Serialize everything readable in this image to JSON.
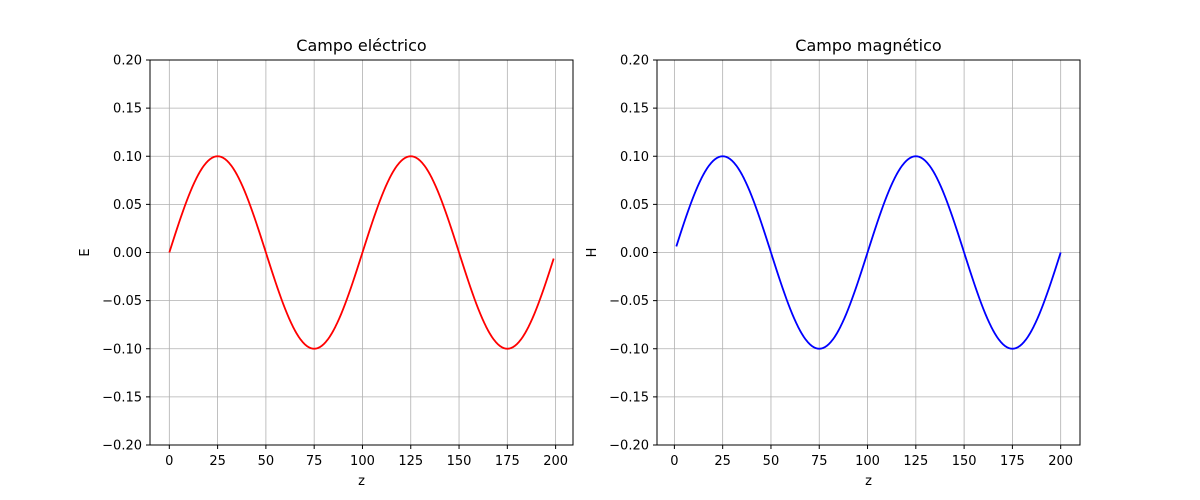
{
  "chart_data": [
    {
      "type": "line",
      "title": "Campo eléctrico",
      "xlabel": "z",
      "ylabel": "E",
      "xlim": [
        -10,
        209
      ],
      "ylim": [
        -0.2,
        0.2
      ],
      "xticks": [
        0,
        25,
        50,
        75,
        100,
        125,
        150,
        175,
        200
      ],
      "yticks": [
        -0.2,
        -0.15,
        -0.1,
        -0.05,
        0.0,
        0.05,
        0.1,
        0.15,
        0.2
      ],
      "ytick_labels": [
        "−0.20",
        "−0.15",
        "−0.10",
        "−0.05",
        "0.00",
        "0.05",
        "0.10",
        "0.15",
        "0.20"
      ],
      "grid": true,
      "series": [
        {
          "color": "#ff0000",
          "function": "0.1*sin(2*pi*z/100)",
          "x_start": 0,
          "x_end": 199,
          "x_step": 1
        }
      ]
    },
    {
      "type": "line",
      "title": "Campo magnético",
      "xlabel": "z",
      "ylabel": "H",
      "xlim": [
        -9,
        210
      ],
      "ylim": [
        -0.2,
        0.2
      ],
      "xticks": [
        0,
        25,
        50,
        75,
        100,
        125,
        150,
        175,
        200
      ],
      "yticks": [
        -0.2,
        -0.15,
        -0.1,
        -0.05,
        0.0,
        0.05,
        0.1,
        0.15,
        0.2
      ],
      "ytick_labels": [
        "−0.20",
        "−0.15",
        "−0.10",
        "−0.05",
        "0.00",
        "0.05",
        "0.10",
        "0.15",
        "0.20"
      ],
      "grid": true,
      "series": [
        {
          "color": "#0000ff",
          "function": "0.1*sin(2*pi*z/100)",
          "x_start": 1,
          "x_end": 200,
          "x_step": 1
        }
      ]
    }
  ]
}
